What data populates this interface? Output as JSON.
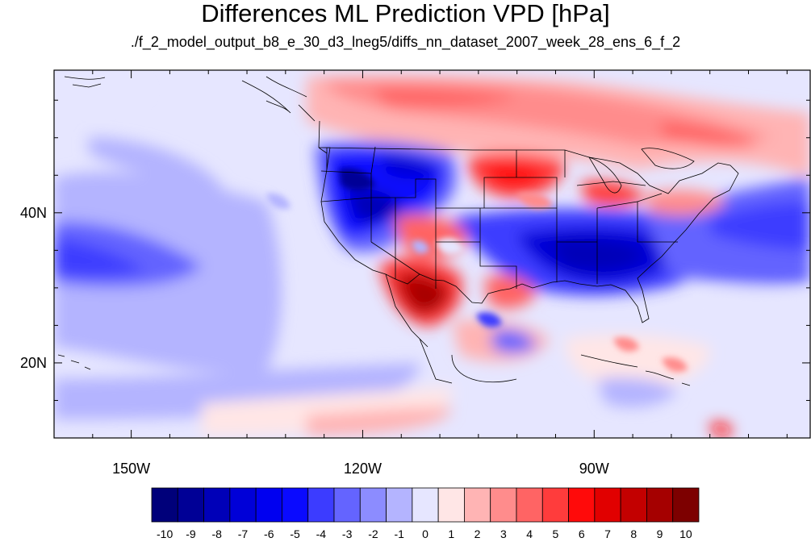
{
  "title": "Differences ML Prediction VPD [hPa]",
  "subtitle": "./f_2_model_output_b8_e_30_d3_lneg5/diffs_nn_dataset_2007_week_28_ens_6_f_2",
  "map": {
    "lon_range": [
      -160,
      -62
    ],
    "lat_range": [
      10,
      59
    ],
    "lon_ticks": [
      {
        "value": -150,
        "label": "150W"
      },
      {
        "value": -120,
        "label": "120W"
      },
      {
        "value": -90,
        "label": "90W"
      }
    ],
    "lat_ticks": [
      {
        "value": 40,
        "label": "40N"
      },
      {
        "value": 20,
        "label": "20N"
      }
    ]
  },
  "colorbar": {
    "labels": [
      "-10",
      "-9",
      "-8",
      "-7",
      "-6",
      "-5",
      "-4",
      "-3",
      "-2",
      "-1",
      "0",
      "1",
      "2",
      "3",
      "4",
      "5",
      "6",
      "7",
      "8",
      "9",
      "10"
    ],
    "colors": [
      "#00007a",
      "#000096",
      "#0000b8",
      "#0000d8",
      "#0000f0",
      "#0a0aff",
      "#3c3cff",
      "#6464ff",
      "#8c8cff",
      "#b4b4ff",
      "#e6e6ff",
      "#ffe6e6",
      "#ffb4b4",
      "#ff8c8c",
      "#ff6464",
      "#ff3c3c",
      "#ff0a0a",
      "#e10000",
      "#c30000",
      "#a50000",
      "#7d0000"
    ]
  }
}
